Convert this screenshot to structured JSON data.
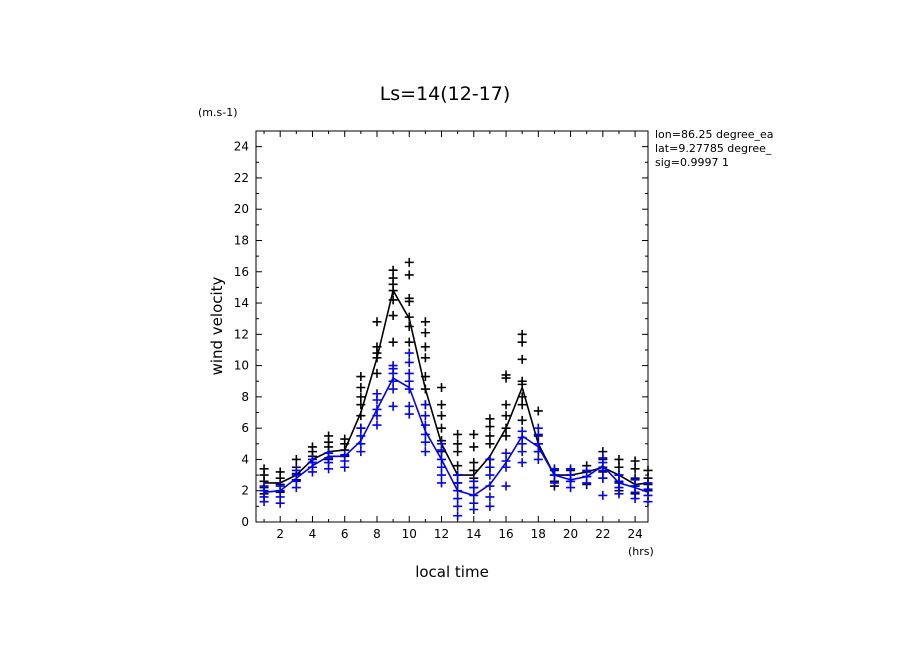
{
  "chart_data": {
    "type": "scatter",
    "title": "Ls=14(12-17)",
    "ylabel": "wind velocity",
    "xlabel": "local time",
    "yunit": "(m.s-1)",
    "xunit": "(hrs)",
    "xlim": [
      0.5,
      24.8
    ],
    "ylim": [
      0,
      25
    ],
    "xticks": [
      "2",
      "4",
      "6",
      "8",
      "10",
      "12",
      "14",
      "16",
      "18",
      "20",
      "22",
      "24"
    ],
    "yticks": [
      "0",
      "2",
      "4",
      "6",
      "8",
      "10",
      "12",
      "14",
      "16",
      "18",
      "20",
      "22",
      "24"
    ],
    "info": [
      "lon=86.25 degree_ea",
      "lat=9.27785 degree_",
      "sig=0.9997 1"
    ],
    "series": [
      {
        "color": "#000000",
        "line": [
          [
            1,
            2.5
          ],
          [
            2,
            2.5
          ],
          [
            3,
            3.0
          ],
          [
            4,
            4.0
          ],
          [
            5,
            4.5
          ],
          [
            6,
            4.6
          ],
          [
            7,
            7.0
          ],
          [
            8,
            10.5
          ],
          [
            9,
            14.8
          ],
          [
            10,
            13.0
          ],
          [
            11,
            8.5
          ],
          [
            12,
            5.0
          ],
          [
            13,
            3.0
          ],
          [
            14,
            3.0
          ],
          [
            15,
            4.2
          ],
          [
            16,
            6.0
          ],
          [
            17,
            8.6
          ],
          [
            18,
            5.0
          ],
          [
            19,
            3.0
          ],
          [
            20,
            3.0
          ],
          [
            21,
            3.2
          ],
          [
            22,
            3.5
          ],
          [
            23,
            3.0
          ],
          [
            24,
            2.4
          ],
          [
            24.8,
            2.5
          ]
        ],
        "points": [
          [
            1,
            1.8
          ],
          [
            1,
            2.2
          ],
          [
            1,
            2.6
          ],
          [
            1,
            3.0
          ],
          [
            1,
            3.4
          ],
          [
            2,
            1.9
          ],
          [
            2,
            2.4
          ],
          [
            2,
            2.8
          ],
          [
            2,
            3.2
          ],
          [
            3,
            2.7
          ],
          [
            3,
            3.1
          ],
          [
            3,
            3.5
          ],
          [
            3,
            4.0
          ],
          [
            4,
            3.8
          ],
          [
            4,
            4.2
          ],
          [
            4,
            4.5
          ],
          [
            4,
            4.8
          ],
          [
            5,
            4.0
          ],
          [
            5,
            4.4
          ],
          [
            5,
            4.8
          ],
          [
            5,
            5.1
          ],
          [
            5,
            5.5
          ],
          [
            6,
            4.2
          ],
          [
            6,
            4.6
          ],
          [
            6,
            5.0
          ],
          [
            6,
            5.3
          ],
          [
            7,
            6.0
          ],
          [
            7,
            6.8
          ],
          [
            7,
            7.5
          ],
          [
            7,
            8.0
          ],
          [
            7,
            8.6
          ],
          [
            7,
            9.3
          ],
          [
            8,
            9.5
          ],
          [
            8,
            10.5
          ],
          [
            8,
            10.8
          ],
          [
            8,
            11.2
          ],
          [
            8,
            12.8
          ],
          [
            9,
            11.5
          ],
          [
            9,
            13.2
          ],
          [
            9,
            14.2
          ],
          [
            9,
            14.8
          ],
          [
            9,
            15.2
          ],
          [
            9,
            15.6
          ],
          [
            9,
            16.1
          ],
          [
            10,
            11.5
          ],
          [
            10,
            12.5
          ],
          [
            10,
            13.1
          ],
          [
            10,
            14.1
          ],
          [
            10,
            14.3
          ],
          [
            10,
            15.8
          ],
          [
            10,
            16.6
          ],
          [
            11,
            7.5
          ],
          [
            11,
            8.5
          ],
          [
            11,
            9.3
          ],
          [
            11,
            10.5
          ],
          [
            11,
            11.2
          ],
          [
            11,
            12.1
          ],
          [
            11,
            12.8
          ],
          [
            12,
            4.5
          ],
          [
            12,
            5.2
          ],
          [
            12,
            6.0
          ],
          [
            12,
            6.8
          ],
          [
            12,
            7.5
          ],
          [
            12,
            8.6
          ],
          [
            13,
            2.5
          ],
          [
            13,
            3.0
          ],
          [
            13,
            3.6
          ],
          [
            13,
            4.5
          ],
          [
            13,
            5.0
          ],
          [
            13,
            5.6
          ],
          [
            14,
            2.2
          ],
          [
            14,
            2.8
          ],
          [
            14,
            3.3
          ],
          [
            14,
            3.8
          ],
          [
            14,
            4.8
          ],
          [
            14,
            5.6
          ],
          [
            15,
            3.5
          ],
          [
            15,
            4.0
          ],
          [
            15,
            5.0
          ],
          [
            15,
            5.5
          ],
          [
            15,
            6.1
          ],
          [
            15,
            6.6
          ],
          [
            16,
            5.5
          ],
          [
            16,
            6.0
          ],
          [
            16,
            6.8
          ],
          [
            16,
            7.5
          ],
          [
            16,
            9.2
          ],
          [
            16,
            9.4
          ],
          [
            17,
            6.5
          ],
          [
            17,
            7.5
          ],
          [
            17,
            8.0
          ],
          [
            17,
            8.8
          ],
          [
            17,
            9.0
          ],
          [
            17,
            10.4
          ],
          [
            17,
            11.5
          ],
          [
            17,
            12.0
          ],
          [
            18,
            4.5
          ],
          [
            18,
            5.0
          ],
          [
            18,
            5.5
          ],
          [
            18,
            7.1
          ],
          [
            19,
            2.3
          ],
          [
            19,
            2.6
          ],
          [
            19,
            3.0
          ],
          [
            19,
            3.3
          ],
          [
            20,
            2.6
          ],
          [
            20,
            3.0
          ],
          [
            20,
            3.3
          ],
          [
            21,
            2.4
          ],
          [
            21,
            2.9
          ],
          [
            21,
            3.2
          ],
          [
            21,
            3.6
          ],
          [
            22,
            2.8
          ],
          [
            22,
            3.2
          ],
          [
            22,
            3.5
          ],
          [
            22,
            4.0
          ],
          [
            22,
            4.5
          ],
          [
            23,
            2.0
          ],
          [
            23,
            2.5
          ],
          [
            23,
            3.0
          ],
          [
            23,
            3.5
          ],
          [
            23,
            4.0
          ],
          [
            24,
            1.8
          ],
          [
            24,
            2.3
          ],
          [
            24,
            2.8
          ],
          [
            24,
            3.4
          ],
          [
            24,
            3.9
          ],
          [
            24.8,
            2.0
          ],
          [
            24.8,
            2.4
          ],
          [
            24.8,
            2.8
          ],
          [
            24.8,
            3.3
          ]
        ]
      },
      {
        "color": "#0000ff",
        "line": [
          [
            1,
            1.9
          ],
          [
            2,
            2.0
          ],
          [
            3,
            2.8
          ],
          [
            4,
            3.6
          ],
          [
            5,
            4.2
          ],
          [
            6,
            4.2
          ],
          [
            7,
            5.2
          ],
          [
            8,
            7.2
          ],
          [
            9,
            9.2
          ],
          [
            10,
            8.6
          ],
          [
            11,
            5.8
          ],
          [
            12,
            4.0
          ],
          [
            13,
            2.0
          ],
          [
            14,
            1.7
          ],
          [
            15,
            2.4
          ],
          [
            16,
            3.8
          ],
          [
            17,
            5.5
          ],
          [
            18,
            4.8
          ],
          [
            19,
            3.0
          ],
          [
            20,
            2.7
          ],
          [
            21,
            2.9
          ],
          [
            22,
            3.6
          ],
          [
            23,
            2.5
          ],
          [
            24,
            2.2
          ],
          [
            24.8,
            1.9
          ]
        ],
        "points": [
          [
            1,
            1.3
          ],
          [
            1,
            1.6
          ],
          [
            1,
            2.0
          ],
          [
            1,
            2.3
          ],
          [
            2,
            1.2
          ],
          [
            2,
            1.6
          ],
          [
            2,
            2.0
          ],
          [
            2,
            2.3
          ],
          [
            3,
            2.2
          ],
          [
            3,
            2.6
          ],
          [
            3,
            3.0
          ],
          [
            3,
            3.3
          ],
          [
            4,
            3.2
          ],
          [
            4,
            3.5
          ],
          [
            4,
            3.8
          ],
          [
            4,
            4.0
          ],
          [
            5,
            3.4
          ],
          [
            5,
            3.8
          ],
          [
            5,
            4.1
          ],
          [
            5,
            4.4
          ],
          [
            6,
            3.5
          ],
          [
            6,
            3.9
          ],
          [
            6,
            4.3
          ],
          [
            7,
            4.5
          ],
          [
            7,
            5.0
          ],
          [
            7,
            5.5
          ],
          [
            7,
            6.0
          ],
          [
            8,
            6.2
          ],
          [
            8,
            6.8
          ],
          [
            8,
            7.2
          ],
          [
            8,
            7.8
          ],
          [
            8,
            8.2
          ],
          [
            9,
            7.4
          ],
          [
            9,
            8.5
          ],
          [
            9,
            9.0
          ],
          [
            9,
            9.5
          ],
          [
            9,
            9.8
          ],
          [
            9,
            10.0
          ],
          [
            10,
            6.9
          ],
          [
            10,
            7.4
          ],
          [
            10,
            8.5
          ],
          [
            10,
            9.0
          ],
          [
            10,
            9.5
          ],
          [
            10,
            10.2
          ],
          [
            10,
            10.8
          ],
          [
            11,
            4.5
          ],
          [
            11,
            5.1
          ],
          [
            11,
            5.6
          ],
          [
            11,
            6.2
          ],
          [
            11,
            6.8
          ],
          [
            11,
            7.5
          ],
          [
            12,
            2.5
          ],
          [
            12,
            3.0
          ],
          [
            12,
            3.5
          ],
          [
            12,
            4.0
          ],
          [
            12,
            4.6
          ],
          [
            12,
            5.0
          ],
          [
            13,
            0.4
          ],
          [
            13,
            1.0
          ],
          [
            13,
            1.5
          ],
          [
            13,
            2.0
          ],
          [
            13,
            2.5
          ],
          [
            13,
            3.0
          ],
          [
            14,
            0.8
          ],
          [
            14,
            1.2
          ],
          [
            14,
            1.7
          ],
          [
            14,
            2.2
          ],
          [
            14,
            2.6
          ],
          [
            15,
            1.0
          ],
          [
            15,
            1.6
          ],
          [
            15,
            2.3
          ],
          [
            15,
            3.0
          ],
          [
            15,
            3.5
          ],
          [
            15,
            4.0
          ],
          [
            16,
            2.3
          ],
          [
            16,
            3.5
          ],
          [
            16,
            3.9
          ],
          [
            16,
            4.4
          ],
          [
            17,
            3.8
          ],
          [
            17,
            4.5
          ],
          [
            17,
            5.0
          ],
          [
            17,
            5.4
          ],
          [
            17,
            5.8
          ],
          [
            18,
            4.0
          ],
          [
            18,
            4.5
          ],
          [
            18,
            5.0
          ],
          [
            18,
            5.6
          ],
          [
            18,
            6.0
          ],
          [
            19,
            2.5
          ],
          [
            19,
            3.0
          ],
          [
            19,
            3.4
          ],
          [
            20,
            2.2
          ],
          [
            20,
            2.6
          ],
          [
            20,
            3.0
          ],
          [
            20,
            3.4
          ],
          [
            21,
            2.5
          ],
          [
            21,
            2.9
          ],
          [
            21,
            3.3
          ],
          [
            22,
            1.7
          ],
          [
            22,
            2.8
          ],
          [
            22,
            3.3
          ],
          [
            22,
            3.8
          ],
          [
            22,
            4.1
          ],
          [
            23,
            1.8
          ],
          [
            23,
            2.2
          ],
          [
            23,
            2.6
          ],
          [
            23,
            3.0
          ],
          [
            24,
            1.5
          ],
          [
            24,
            1.9
          ],
          [
            24,
            2.3
          ],
          [
            24,
            2.7
          ],
          [
            24.8,
            1.3
          ],
          [
            24.8,
            1.7
          ],
          [
            24.8,
            2.1
          ],
          [
            24.8,
            2.5
          ]
        ]
      }
    ]
  }
}
